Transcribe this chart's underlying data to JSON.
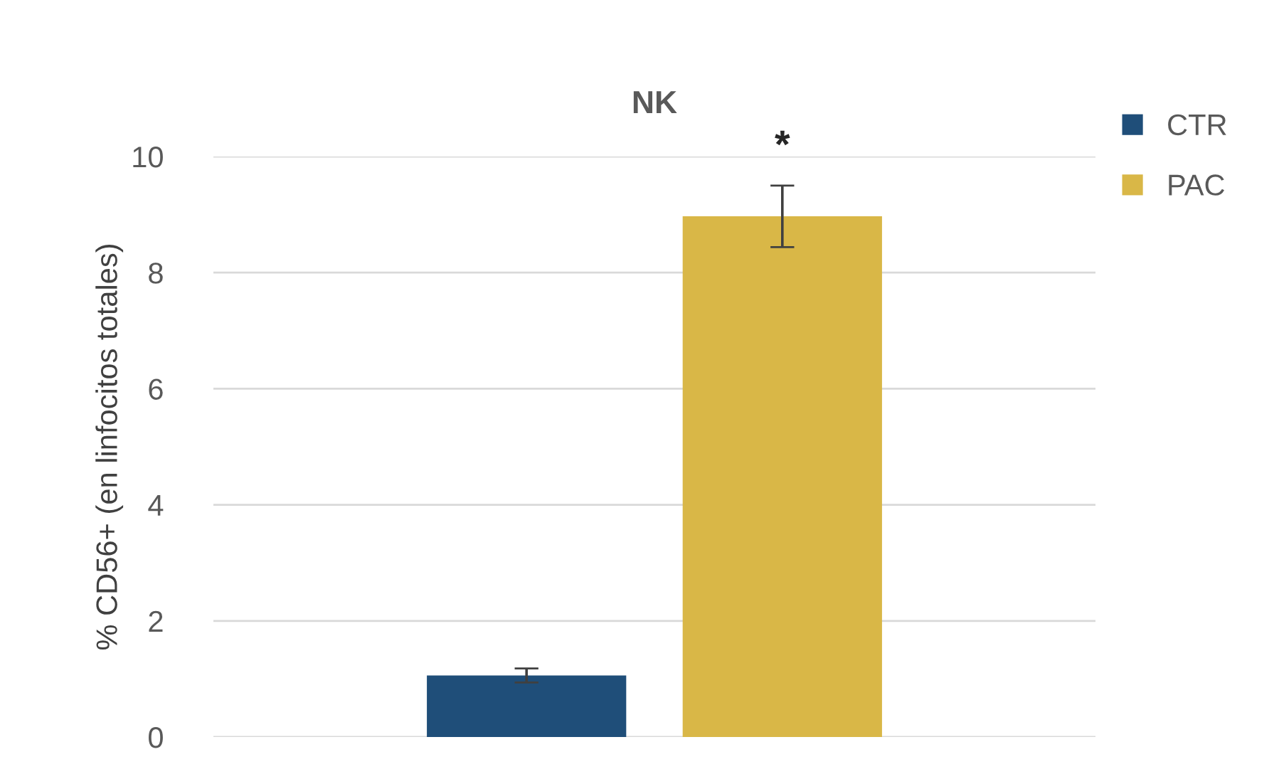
{
  "chart_data": {
    "type": "bar",
    "title": "NK",
    "ylabel": "% CD56+ (en linfocitos totales)",
    "categories": [
      null
    ],
    "series": [
      {
        "name": "CTR",
        "color": "#1f4e79",
        "values": [
          1.06
        ],
        "errors": [
          0.12
        ]
      },
      {
        "name": "PAC",
        "color": "#d9b747",
        "values": [
          8.97
        ],
        "errors": [
          0.53
        ]
      }
    ],
    "ylim": [
      0,
      10
    ],
    "yticks": [
      0,
      2,
      4,
      6,
      8,
      10
    ],
    "grid": "y",
    "legend": "top right",
    "annotations": [
      "*"
    ]
  }
}
